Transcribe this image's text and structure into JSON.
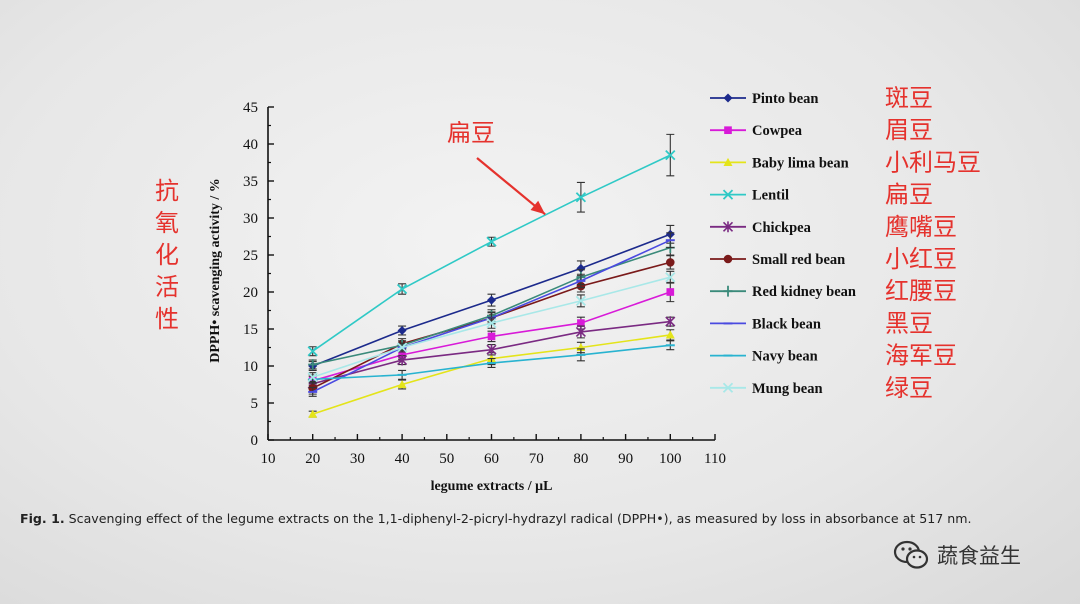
{
  "chart_data": {
    "type": "line",
    "xlabel": "legume extracts / μL",
    "ylabel": "DPPH• scavenging activity / %",
    "xlim": [
      10,
      110
    ],
    "ylim": [
      0,
      45
    ],
    "x_ticks": [
      10,
      20,
      30,
      40,
      50,
      60,
      70,
      80,
      90,
      100,
      110
    ],
    "y_ticks": [
      0,
      5,
      10,
      15,
      20,
      25,
      30,
      35,
      40,
      45
    ],
    "x": [
      20,
      40,
      60,
      80,
      100
    ],
    "legend_position": "right",
    "grid": false,
    "series": [
      {
        "name": "Pinto bean",
        "cn": "斑豆",
        "color": "#1c2a8c",
        "marker": "diamond",
        "values": [
          10.0,
          14.8,
          18.9,
          23.2,
          27.8
        ],
        "errors": [
          0.6,
          0.6,
          0.8,
          1.0,
          1.2
        ]
      },
      {
        "name": "Cowpea",
        "cn": "眉豆",
        "color": "#d81ad8",
        "marker": "square",
        "values": [
          8.0,
          11.5,
          14.0,
          15.8,
          20.0
        ],
        "errors": [
          0.6,
          0.6,
          0.7,
          0.8,
          1.3
        ]
      },
      {
        "name": "Baby lima bean",
        "cn": "小利马豆",
        "color": "#e4e41a",
        "marker": "triangle",
        "values": [
          3.5,
          7.5,
          11.0,
          12.5,
          14.2
        ],
        "errors": [
          0.4,
          0.6,
          0.8,
          0.7,
          0.7
        ]
      },
      {
        "name": "Lentil",
        "cn": "扁豆",
        "color": "#2fc9c6",
        "marker": "x",
        "values": [
          12.0,
          20.4,
          26.8,
          32.8,
          38.5
        ],
        "errors": [
          0.6,
          0.7,
          0.6,
          2.0,
          2.8
        ]
      },
      {
        "name": "Chickpea",
        "cn": "鹰嘴豆",
        "color": "#7a2a82",
        "marker": "star",
        "values": [
          7.6,
          10.8,
          12.2,
          14.6,
          16.0
        ],
        "errors": [
          0.6,
          0.6,
          0.7,
          0.8,
          0.6
        ]
      },
      {
        "name": "Small red bean",
        "cn": "小红豆",
        "color": "#7a1a1a",
        "marker": "circle",
        "values": [
          7.0,
          13.0,
          16.5,
          20.8,
          24.0
        ],
        "errors": [
          0.8,
          0.7,
          0.8,
          0.8,
          0.9
        ]
      },
      {
        "name": "Red kidney bean",
        "cn": "红腰豆",
        "color": "#3a8a7a",
        "marker": "plus",
        "values": [
          10.2,
          12.8,
          16.8,
          22.0,
          26.0
        ],
        "errors": [
          0.6,
          0.6,
          0.8,
          1.0,
          1.0
        ]
      },
      {
        "name": "Black bean",
        "cn": "黑豆",
        "color": "#4a4ae0",
        "marker": "dash",
        "values": [
          6.5,
          12.5,
          16.5,
          21.5,
          27.0
        ],
        "errors": [
          0.6,
          0.6,
          0.7,
          0.9,
          1.0
        ]
      },
      {
        "name": "Navy bean",
        "cn": "海军豆",
        "color": "#28b3d0",
        "marker": "dash",
        "values": [
          8.2,
          8.8,
          10.4,
          11.5,
          12.8
        ],
        "errors": [
          0.6,
          0.6,
          0.6,
          0.8,
          0.6
        ]
      },
      {
        "name": "Mung bean",
        "cn": "绿豆",
        "color": "#a8e8e8",
        "marker": "x",
        "values": [
          8.5,
          12.5,
          15.8,
          18.8,
          22.0
        ],
        "errors": [
          0.6,
          0.6,
          0.7,
          0.8,
          0.8
        ]
      }
    ],
    "annotations": {
      "arrow_label": "扁豆",
      "arrow_target_x": 72,
      "arrow_target_y": 30.5,
      "side_label": "抗氧化活性"
    },
    "caption_prefix": "Fig. 1.",
    "caption_text": " Scavenging effect of the legume extracts on the 1,1-diphenyl-2-picryl-hydrazyl radical (DPPH•), as measured by loss in absorbance at 517 nm."
  },
  "watermark": {
    "text": "蔬食益生",
    "icon": "wechat-icon",
    "color": "#333333"
  },
  "colors": {
    "annotation_red": "#e5322d",
    "axis": "#111111"
  }
}
